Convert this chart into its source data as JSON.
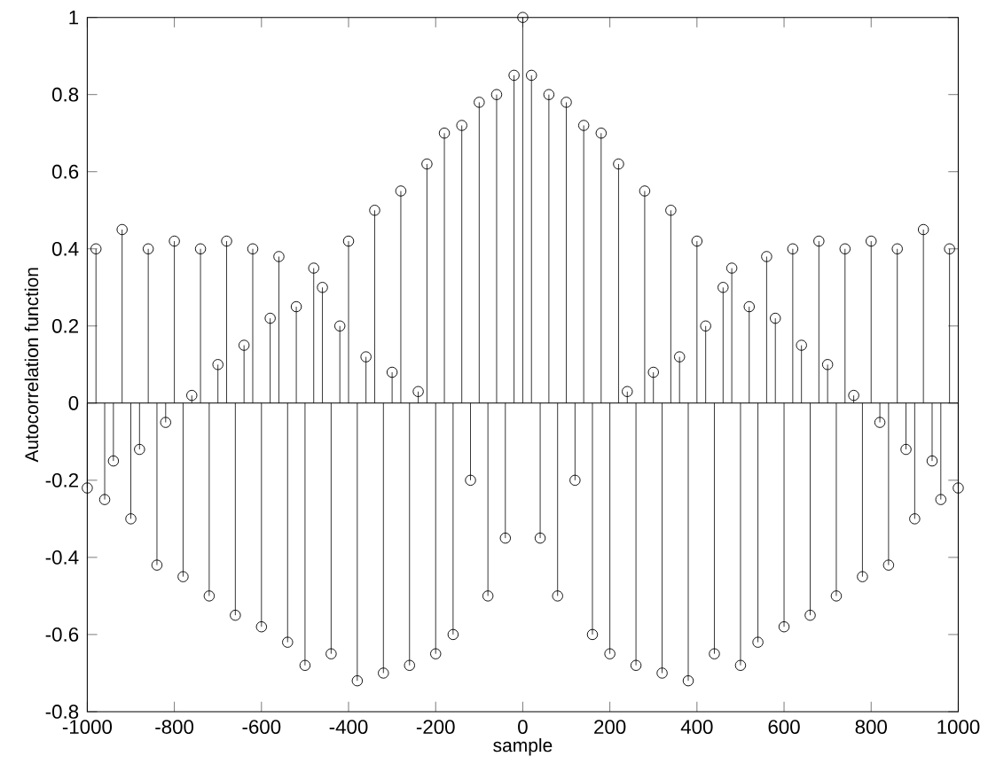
{
  "chart_data": {
    "type": "lollipop",
    "xlabel": "sample",
    "ylabel": "Autocorrelation function",
    "x": [
      -1000,
      -980,
      -960,
      -940,
      -920,
      -900,
      -880,
      -860,
      -840,
      -820,
      -800,
      -780,
      -760,
      -740,
      -720,
      -700,
      -680,
      -660,
      -640,
      -620,
      -600,
      -580,
      -560,
      -540,
      -520,
      -500,
      -480,
      -460,
      -440,
      -420,
      -400,
      -380,
      -360,
      -340,
      -320,
      -300,
      -280,
      -260,
      -240,
      -220,
      -200,
      -180,
      -160,
      -140,
      -120,
      -100,
      -80,
      -60,
      -40,
      -20,
      0,
      20,
      40,
      60,
      80,
      100,
      120,
      140,
      160,
      180,
      200,
      220,
      240,
      260,
      280,
      300,
      320,
      340,
      360,
      380,
      400,
      420,
      440,
      460,
      480,
      500,
      520,
      540,
      560,
      580,
      600,
      620,
      640,
      660,
      680,
      700,
      720,
      740,
      760,
      780,
      800,
      820,
      840,
      860,
      880,
      900,
      920,
      940,
      960,
      980,
      1000
    ],
    "values": [
      -0.22,
      0.4,
      -0.25,
      -0.15,
      0.45,
      -0.3,
      -0.12,
      0.4,
      -0.42,
      -0.05,
      0.42,
      -0.45,
      0.02,
      0.4,
      -0.5,
      0.1,
      0.42,
      -0.55,
      0.15,
      0.4,
      -0.58,
      0.22,
      0.38,
      -0.62,
      0.25,
      -0.68,
      0.35,
      0.3,
      -0.65,
      0.2,
      0.42,
      -0.72,
      0.12,
      0.5,
      -0.7,
      0.08,
      0.55,
      -0.68,
      0.03,
      0.62,
      -0.65,
      0.7,
      -0.6,
      0.72,
      -0.2,
      0.78,
      -0.5,
      0.8,
      -0.35,
      0.85,
      1,
      0.85,
      -0.35,
      0.8,
      -0.5,
      0.78,
      -0.2,
      0.72,
      -0.6,
      0.7,
      -0.65,
      0.62,
      0.03,
      -0.68,
      0.55,
      0.08,
      -0.7,
      0.5,
      0.12,
      -0.72,
      0.42,
      0.2,
      -0.65,
      0.3,
      0.35,
      -0.68,
      0.25,
      -0.62,
      0.38,
      0.22,
      -0.58,
      0.4,
      0.15,
      -0.55,
      0.42,
      0.1,
      -0.5,
      0.4,
      0.02,
      -0.45,
      0.42,
      -0.05,
      -0.42,
      0.4,
      -0.12,
      -0.3,
      0.45,
      -0.15,
      -0.25,
      0.4,
      -0.22
    ],
    "color": "#000000",
    "marker": "circle",
    "xlim": [
      -1000,
      1000
    ],
    "ylim": [
      -0.8,
      1
    ],
    "xticks": [
      -1000,
      -800,
      -600,
      -400,
      -200,
      0,
      200,
      400,
      600,
      800,
      1000
    ],
    "yticks": [
      -0.8,
      -0.6,
      -0.4,
      -0.2,
      0,
      0.2,
      0.4,
      0.6,
      0.8,
      1
    ]
  }
}
